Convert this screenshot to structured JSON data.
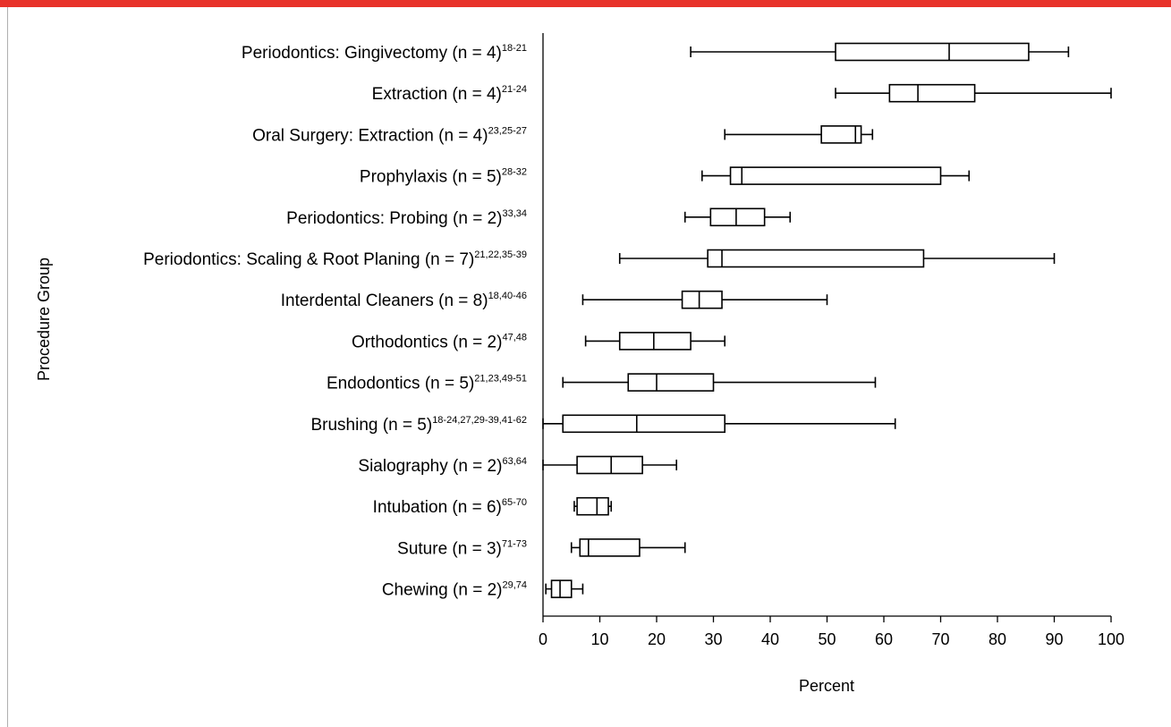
{
  "header": {
    "accent_color": "#e8322a"
  },
  "chart_data": {
    "type": "boxplot",
    "orientation": "horizontal",
    "xlabel": "Percent",
    "ylabel": "Procedure Group",
    "xlim": [
      0,
      100
    ],
    "xticks": [
      "0",
      "10",
      "20",
      "30",
      "40",
      "50",
      "60",
      "70",
      "80",
      "90",
      "100"
    ],
    "grid": false,
    "categories": [
      {
        "label": "Periodontics: Gingivectomy (n = 4)",
        "refs": "18-21",
        "min": 26,
        "q1": 51.5,
        "median": 71.5,
        "q3": 85.5,
        "max": 92.5
      },
      {
        "label": "Extraction (n = 4)",
        "refs": "21-24",
        "min": 51.5,
        "q1": 61,
        "median": 66,
        "q3": 76,
        "max": 100
      },
      {
        "label": "Oral Surgery: Extraction (n = 4)",
        "refs": "23,25-27",
        "min": 32,
        "q1": 49,
        "median": 55,
        "q3": 56,
        "max": 58
      },
      {
        "label": "Prophylaxis (n = 5)",
        "refs": "28-32",
        "min": 28,
        "q1": 33,
        "median": 35,
        "q3": 70,
        "max": 75
      },
      {
        "label": "Periodontics: Probing (n = 2)",
        "refs": "33,34",
        "min": 25,
        "q1": 29.5,
        "median": 34,
        "q3": 39,
        "max": 43.5
      },
      {
        "label": "Periodontics: Scaling & Root Planing (n = 7)",
        "refs": "21,22,35-39",
        "min": 13.5,
        "q1": 29,
        "median": 31.5,
        "q3": 67,
        "max": 90
      },
      {
        "label": "Interdental Cleaners (n = 8)",
        "refs": "18,40-46",
        "min": 7,
        "q1": 24.5,
        "median": 27.5,
        "q3": 31.5,
        "max": 50
      },
      {
        "label": "Orthodontics (n = 2)",
        "refs": "47,48",
        "min": 7.5,
        "q1": 13.5,
        "median": 19.5,
        "q3": 26,
        "max": 32
      },
      {
        "label": "Endodontics (n = 5)",
        "refs": "21,23,49-51",
        "min": 3.5,
        "q1": 15,
        "median": 20,
        "q3": 30,
        "max": 58.5
      },
      {
        "label": "Brushing (n = 5)",
        "refs": "18-24,27,29-39,41-62",
        "min": 0,
        "q1": 3.5,
        "median": 16.5,
        "q3": 32,
        "max": 62
      },
      {
        "label": "Sialography (n = 2)",
        "refs": "63,64",
        "min": 0,
        "q1": 6,
        "median": 12,
        "q3": 17.5,
        "max": 23.5
      },
      {
        "label": "Intubation (n = 6)",
        "refs": "65-70",
        "min": 5.5,
        "q1": 6,
        "median": 9.5,
        "q3": 11.5,
        "max": 12
      },
      {
        "label": "Suture (n = 3)",
        "refs": "71-73",
        "min": 5,
        "q1": 6.5,
        "median": 8,
        "q3": 17,
        "max": 25
      },
      {
        "label": "Chewing (n = 2)",
        "refs": "29,74",
        "min": 0.5,
        "q1": 1.5,
        "median": 3,
        "q3": 5,
        "max": 7
      }
    ]
  }
}
